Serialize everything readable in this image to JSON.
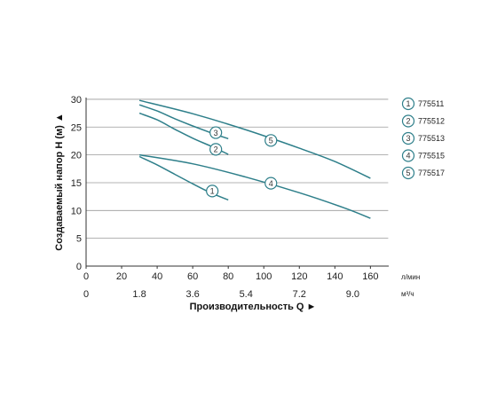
{
  "chart_data": {
    "type": "line",
    "ylabel": "Создаваемый напор H (м) ▲",
    "xlabel": "Производительность Q ►",
    "x_unit_primary": "л/мин",
    "x_unit_secondary": "м³/ч",
    "xlim": [
      0,
      170
    ],
    "ylim": [
      0,
      32
    ],
    "x_ticks": [
      "0",
      "20",
      "40",
      "60",
      "80",
      "100",
      "120",
      "140",
      "160"
    ],
    "x_tick_values": [
      0,
      20,
      40,
      60,
      80,
      100,
      120,
      140,
      160
    ],
    "x2_ticks": [
      "0",
      "1.8",
      "3.6",
      "5.4",
      "7.2",
      "9.0"
    ],
    "x2_tick_values": [
      0,
      30,
      60,
      90,
      120,
      150
    ],
    "y_ticks": [
      "0",
      "5",
      "10",
      "15",
      "20",
      "25",
      "30"
    ],
    "y_tick_values": [
      0,
      5,
      10,
      15,
      20,
      25,
      30
    ],
    "grid": "horizontal",
    "legend_position": "right",
    "line_color": "#2e7f8a",
    "series": [
      {
        "name": "775511",
        "marker": "1",
        "x": [
          30,
          40,
          50,
          60,
          70,
          80
        ],
        "y": [
          19.7,
          18.2,
          16.5,
          14.8,
          13.2,
          11.9
        ],
        "label_at": [
          71,
          13.5
        ]
      },
      {
        "name": "775512",
        "marker": "2",
        "x": [
          30,
          40,
          50,
          60,
          70,
          80
        ],
        "y": [
          27.5,
          26.3,
          24.6,
          23.0,
          21.6,
          20.1
        ],
        "label_at": [
          73,
          21
        ]
      },
      {
        "name": "775513",
        "marker": "3",
        "x": [
          30,
          40,
          50,
          60,
          70,
          80
        ],
        "y": [
          29.0,
          27.9,
          26.5,
          25.2,
          24.0,
          22.9
        ],
        "label_at": [
          73,
          24
        ]
      },
      {
        "name": "775515",
        "marker": "4",
        "x": [
          30,
          60,
          90,
          120,
          145,
          160
        ],
        "y": [
          20.0,
          18.4,
          16.0,
          13.2,
          10.5,
          8.6
        ],
        "label_at": [
          104,
          14.9
        ]
      },
      {
        "name": "775517",
        "marker": "5",
        "x": [
          30,
          60,
          90,
          120,
          140,
          160
        ],
        "y": [
          29.8,
          27.4,
          24.5,
          21.2,
          18.8,
          15.8
        ],
        "label_at": [
          104,
          22.6
        ]
      }
    ]
  }
}
